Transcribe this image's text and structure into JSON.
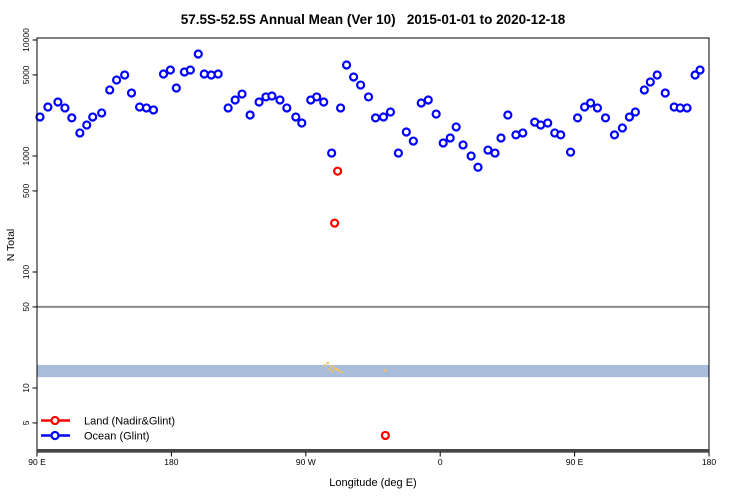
{
  "chart_data": {
    "type": "scatter",
    "title": "57.5S-52.5S Annual Mean (Ver 10)   2015-01-01 to 2020-12-18",
    "xlabel": "Longitude (deg E)",
    "ylabel": "N Total",
    "x_axis": {
      "note": "longitude axis wraps eastward over 450 degrees: 90E,180,90W,0,90E,180",
      "range_deg": [
        90,
        540
      ],
      "ticks": [
        {
          "deg": 90,
          "label": "90 E"
        },
        {
          "deg": 180,
          "label": "180"
        },
        {
          "deg": 270,
          "label": "90 W"
        },
        {
          "deg": 360,
          "label": "0"
        },
        {
          "deg": 450,
          "label": "90 E"
        },
        {
          "deg": 540,
          "label": "180"
        }
      ]
    },
    "y_axis": {
      "scale": "log",
      "range": [
        2.8,
        10500
      ],
      "ticks": [
        {
          "value": 10000,
          "label": "10000"
        },
        {
          "value": 5000,
          "label": "5000"
        },
        {
          "value": 1000,
          "label": "1000"
        },
        {
          "value": 500,
          "label": "500"
        },
        {
          "value": 100,
          "label": "100"
        },
        {
          "value": 50,
          "label": "50"
        },
        {
          "value": 10,
          "label": "10"
        },
        {
          "value": 5,
          "label": "5"
        }
      ]
    },
    "series": [
      {
        "name": "Ocean (Glint)",
        "color": "#0000ff",
        "marker": "open-circle",
        "points": [
          [
            92,
            2170
          ],
          [
            97.3,
            2645
          ],
          [
            104,
            2920
          ],
          [
            108.7,
            2595
          ],
          [
            113.3,
            2130
          ],
          [
            118.7,
            1580
          ],
          [
            123.3,
            1850
          ],
          [
            127.3,
            2170
          ],
          [
            133.3,
            2350
          ],
          [
            138.7,
            3710
          ],
          [
            143.3,
            4520
          ],
          [
            148.7,
            4990
          ],
          [
            153.3,
            3490
          ],
          [
            158.7,
            2645
          ],
          [
            163.3,
            2595
          ],
          [
            168,
            2495
          ],
          [
            174.7,
            5090
          ],
          [
            179.3,
            5510
          ],
          [
            183.3,
            3855
          ],
          [
            188.7,
            5300
          ],
          [
            192.7,
            5510
          ],
          [
            198,
            7570
          ],
          [
            202,
            5090
          ],
          [
            206.7,
            4990
          ],
          [
            211.3,
            5090
          ],
          [
            218,
            2595
          ],
          [
            222.7,
            3040
          ],
          [
            227.3,
            3420
          ],
          [
            232.7,
            2255
          ],
          [
            238.7,
            2920
          ],
          [
            243.3,
            3230
          ],
          [
            247.3,
            3290
          ],
          [
            252.7,
            3040
          ],
          [
            257.3,
            2595
          ],
          [
            263.3,
            2170
          ],
          [
            267.3,
            1925
          ],
          [
            273.3,
            3040
          ],
          [
            277.3,
            3230
          ],
          [
            282,
            2920
          ],
          [
            287.3,
            1060
          ],
          [
            293.3,
            2595
          ],
          [
            297.3,
            6090
          ],
          [
            302,
            4800
          ],
          [
            306.7,
            4090
          ],
          [
            312,
            3230
          ],
          [
            316.7,
            2130
          ],
          [
            322,
            2170
          ],
          [
            326.7,
            2395
          ],
          [
            332,
            1060
          ],
          [
            337.3,
            1610
          ],
          [
            342,
            1345
          ],
          [
            347.3,
            2865
          ],
          [
            352,
            3040
          ],
          [
            357.3,
            2300
          ],
          [
            362,
            1295
          ],
          [
            366.7,
            1430
          ],
          [
            370.7,
            1780
          ],
          [
            375.3,
            1245
          ],
          [
            380.7,
            1000
          ],
          [
            385.3,
            800
          ],
          [
            392,
            1125
          ],
          [
            396.7,
            1060
          ],
          [
            400.7,
            1430
          ],
          [
            405.3,
            2255
          ],
          [
            410.7,
            1520
          ],
          [
            415.3,
            1580
          ],
          [
            423.3,
            1960
          ],
          [
            427.3,
            1850
          ],
          [
            432,
            1925
          ],
          [
            436.7,
            1580
          ],
          [
            440.7,
            1520
          ],
          [
            447.3,
            1080
          ],
          [
            452,
            2130
          ],
          [
            456.7,
            2645
          ],
          [
            460.7,
            2865
          ],
          [
            465.3,
            2595
          ],
          [
            470.7,
            2130
          ],
          [
            476.7,
            1520
          ],
          [
            482,
            1745
          ],
          [
            486.7,
            2170
          ],
          [
            490.7,
            2395
          ],
          [
            496.7,
            3710
          ],
          [
            500.7,
            4345
          ],
          [
            505.3,
            4990
          ],
          [
            510.7,
            3490
          ],
          [
            516.7,
            2645
          ],
          [
            520.7,
            2595
          ],
          [
            525.3,
            2595
          ],
          [
            530.7,
            4990
          ],
          [
            534,
            5510
          ]
        ]
      },
      {
        "name": "Land (Nadir&Glint)",
        "color": "#ff0000",
        "marker": "open-circle",
        "points": [
          [
            291.3,
            740
          ],
          [
            289.3,
            264
          ],
          [
            323.3,
            3.9
          ]
        ]
      },
      {
        "name": "unlabeled-small-dots",
        "color": "#f2c368",
        "marker": "dot",
        "points": [
          [
            282.7,
            15.7
          ],
          [
            284.7,
            16.4
          ],
          [
            286,
            14.5
          ],
          [
            287.3,
            15.4
          ],
          [
            288,
            13.9
          ],
          [
            289.3,
            14.8
          ],
          [
            290.7,
            14.5
          ],
          [
            292,
            14.2
          ],
          [
            294,
            13.7
          ],
          [
            323.3,
            14.2
          ]
        ]
      }
    ],
    "annotations": {
      "hline_value": 50,
      "hline_color": "#8c8c8c",
      "band_range": [
        12.4,
        15.8
      ],
      "band_color": "#a8bdd9"
    }
  },
  "legend": {
    "items": [
      {
        "label": "Land (Nadir&Glint)",
        "color": "#ff0000"
      },
      {
        "label": "Ocean (Glint)",
        "color": "#0000ff"
      }
    ]
  }
}
